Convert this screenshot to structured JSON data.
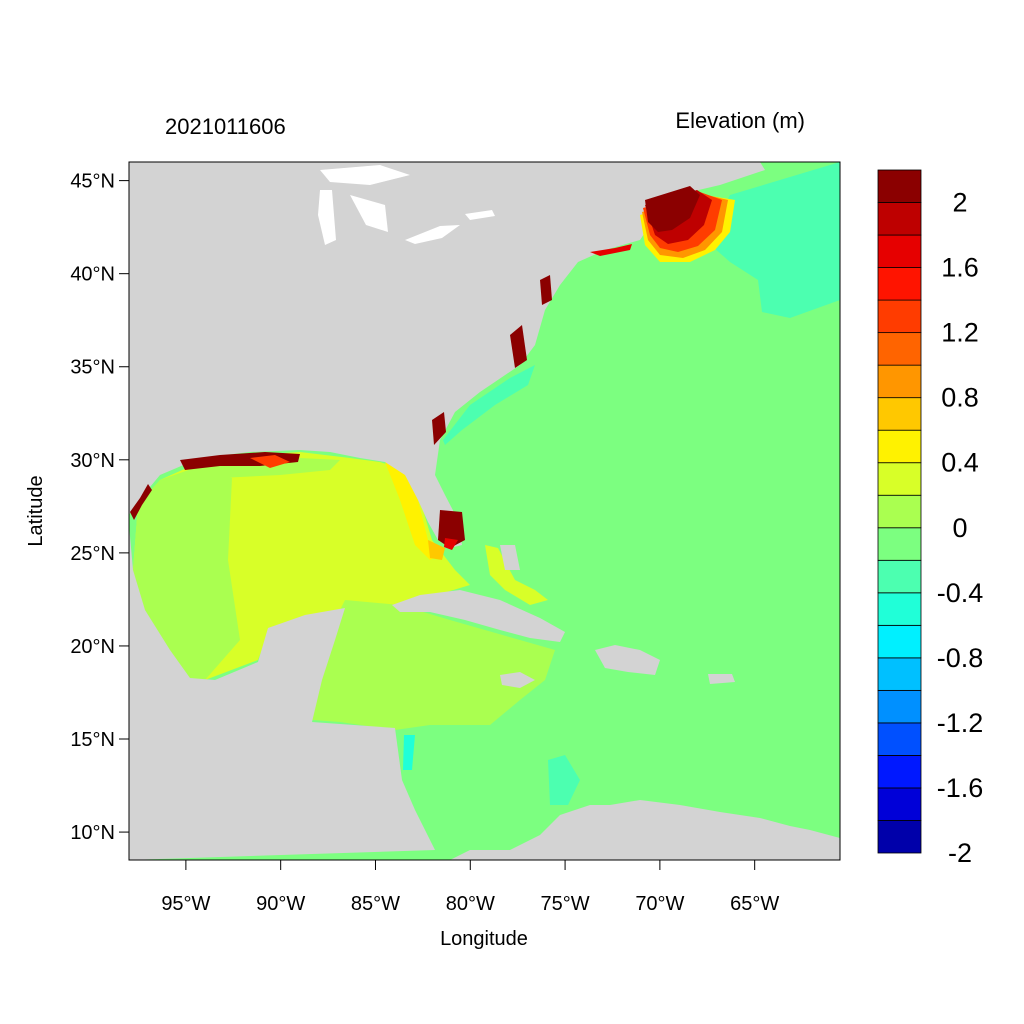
{
  "map": {
    "date_label": "2021011606",
    "variable_label": "Elevation (m)",
    "x_axis_label": "Longitude",
    "y_axis_label": "Latitude",
    "lon_range": [
      -98,
      -60.5
    ],
    "lat_range": [
      8.5,
      46
    ],
    "lon_ticks": [
      {
        "value": -95,
        "label": "95°W"
      },
      {
        "value": -90,
        "label": "90°W"
      },
      {
        "value": -85,
        "label": "85°W"
      },
      {
        "value": -80,
        "label": "80°W"
      },
      {
        "value": -75,
        "label": "75°W"
      },
      {
        "value": -70,
        "label": "70°W"
      },
      {
        "value": -65,
        "label": "65°W"
      }
    ],
    "lat_ticks": [
      {
        "value": 45,
        "label": "45°N"
      },
      {
        "value": 40,
        "label": "40°N"
      },
      {
        "value": 35,
        "label": "35°N"
      },
      {
        "value": 30,
        "label": "30°N"
      },
      {
        "value": 25,
        "label": "25°N"
      },
      {
        "value": 20,
        "label": "20°N"
      },
      {
        "value": 15,
        "label": "15°N"
      },
      {
        "value": 10,
        "label": "10°N"
      }
    ],
    "land_color": "#d3d3d3"
  },
  "colorbar": {
    "levels_low_to_high": [
      {
        "color": "#0000aa"
      },
      {
        "color": "#0000d8"
      },
      {
        "color": "#0018ff"
      },
      {
        "color": "#0050ff"
      },
      {
        "color": "#0090ff"
      },
      {
        "color": "#00c0ff"
      },
      {
        "color": "#00f0ff"
      },
      {
        "color": "#20ffd8"
      },
      {
        "color": "#4cffb0"
      },
      {
        "color": "#7cff80"
      },
      {
        "color": "#aaff50"
      },
      {
        "color": "#d8ff28"
      },
      {
        "color": "#fff200"
      },
      {
        "color": "#ffc800"
      },
      {
        "color": "#ff9600"
      },
      {
        "color": "#ff6400"
      },
      {
        "color": "#ff3c00"
      },
      {
        "color": "#ff1400"
      },
      {
        "color": "#e60000"
      },
      {
        "color": "#be0000"
      },
      {
        "color": "#8b0000"
      }
    ],
    "labels_top_to_bottom": [
      "2",
      "1.6",
      "1.2",
      "0.8",
      "0.4",
      "0",
      "-0.4",
      "-0.8",
      "-1.2",
      "-1.6",
      "-2"
    ]
  }
}
